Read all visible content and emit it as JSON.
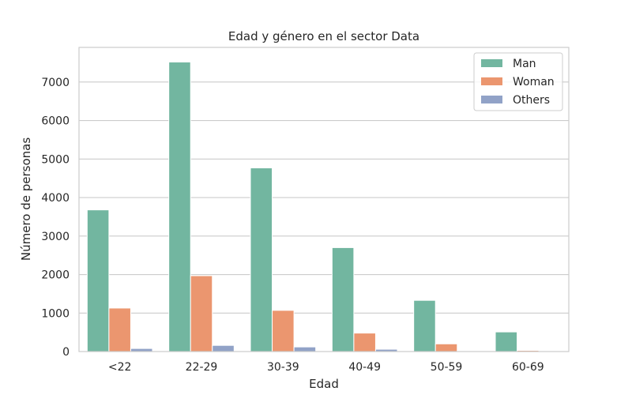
{
  "chart_data": {
    "type": "bar",
    "title": "Edad y género en el sector Data",
    "xlabel": "Edad",
    "ylabel": "Número de personas",
    "categories": [
      "<22",
      "22-29",
      "30-39",
      "40-49",
      "50-59",
      "60-69"
    ],
    "series": [
      {
        "name": "Man",
        "values": [
          3680,
          7520,
          4770,
          2700,
          1330,
          510
        ],
        "color": "#72b6a0"
      },
      {
        "name": "Woman",
        "values": [
          1130,
          1970,
          1070,
          480,
          200,
          30
        ],
        "color": "#eb966f"
      },
      {
        "name": "Others",
        "values": [
          80,
          160,
          120,
          60,
          20,
          10
        ],
        "color": "#91a2c7"
      }
    ],
    "ylim": [
      0,
      7900
    ],
    "yticks": [
      0,
      1000,
      2000,
      3000,
      4000,
      5000,
      6000,
      7000
    ],
    "grid": true,
    "legend": "top-right"
  }
}
